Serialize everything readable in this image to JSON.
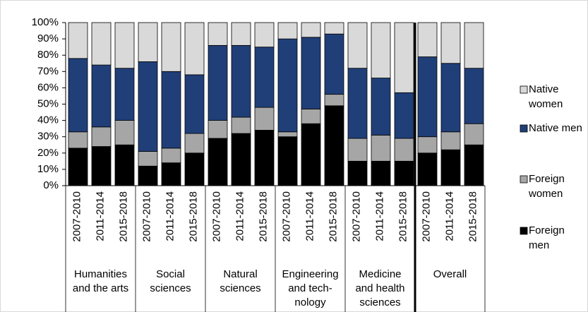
{
  "chart_data": {
    "type": "stacked_bar",
    "categories": [
      "2007-2010",
      "2011-2014",
      "2015-2018",
      "2007-2010",
      "2011-2014",
      "2015-2018",
      "2007-2010",
      "2011-2014",
      "2015-2018",
      "2007-2010",
      "2011-2014",
      "2015-2018",
      "2007-2010",
      "2011-2014",
      "2015-2018",
      "2007-2010",
      "2011-2014",
      "2015-2018"
    ],
    "groups": [
      {
        "lines": [
          "Humanities",
          "and the arts"
        ],
        "size": 3
      },
      {
        "lines": [
          "Social",
          "sciences"
        ],
        "size": 3
      },
      {
        "lines": [
          "Natural",
          "sciences"
        ],
        "size": 3
      },
      {
        "lines": [
          "Engineering",
          "and tech-",
          "nology"
        ],
        "size": 3
      },
      {
        "lines": [
          "Medicine",
          "and health",
          "sciences"
        ],
        "size": 3
      },
      {
        "lines": [
          "Overall"
        ],
        "size": 3
      }
    ],
    "series": [
      {
        "name": "Foreign men",
        "color": "#000000",
        "values": [
          23,
          24,
          25,
          12,
          14,
          20,
          29,
          32,
          34,
          30,
          38,
          49,
          15,
          15,
          15,
          20,
          22,
          25
        ]
      },
      {
        "name": "Foreign women",
        "color": "#a6a6a6",
        "values": [
          10,
          12,
          15,
          9,
          9,
          12,
          11,
          10,
          14,
          3,
          9,
          7,
          14,
          16,
          14,
          10,
          11,
          13
        ]
      },
      {
        "name": "Native men",
        "color": "#203f78",
        "values": [
          45,
          38,
          32,
          55,
          47,
          36,
          46,
          44,
          37,
          57,
          44,
          37,
          43,
          35,
          28,
          49,
          42,
          34
        ]
      },
      {
        "name": "Native women",
        "color": "#d9d9d9",
        "values": [
          22,
          26,
          28,
          24,
          30,
          32,
          14,
          14,
          15,
          10,
          9,
          7,
          28,
          34,
          43,
          21,
          25,
          28
        ]
      }
    ],
    "ylim": [
      0,
      100
    ],
    "yticks": [
      {
        "value": 0,
        "label": "0%"
      },
      {
        "value": 10,
        "label": "10%"
      },
      {
        "value": 20,
        "label": "20%"
      },
      {
        "value": 30,
        "label": "30%"
      },
      {
        "value": 40,
        "label": "40%"
      },
      {
        "value": 50,
        "label": "50%"
      },
      {
        "value": 60,
        "label": "60%"
      },
      {
        "value": 70,
        "label": "70%"
      },
      {
        "value": 80,
        "label": "80%"
      },
      {
        "value": 90,
        "label": "90%"
      },
      {
        "value": 100,
        "label": "100%"
      }
    ],
    "legend": "right"
  }
}
